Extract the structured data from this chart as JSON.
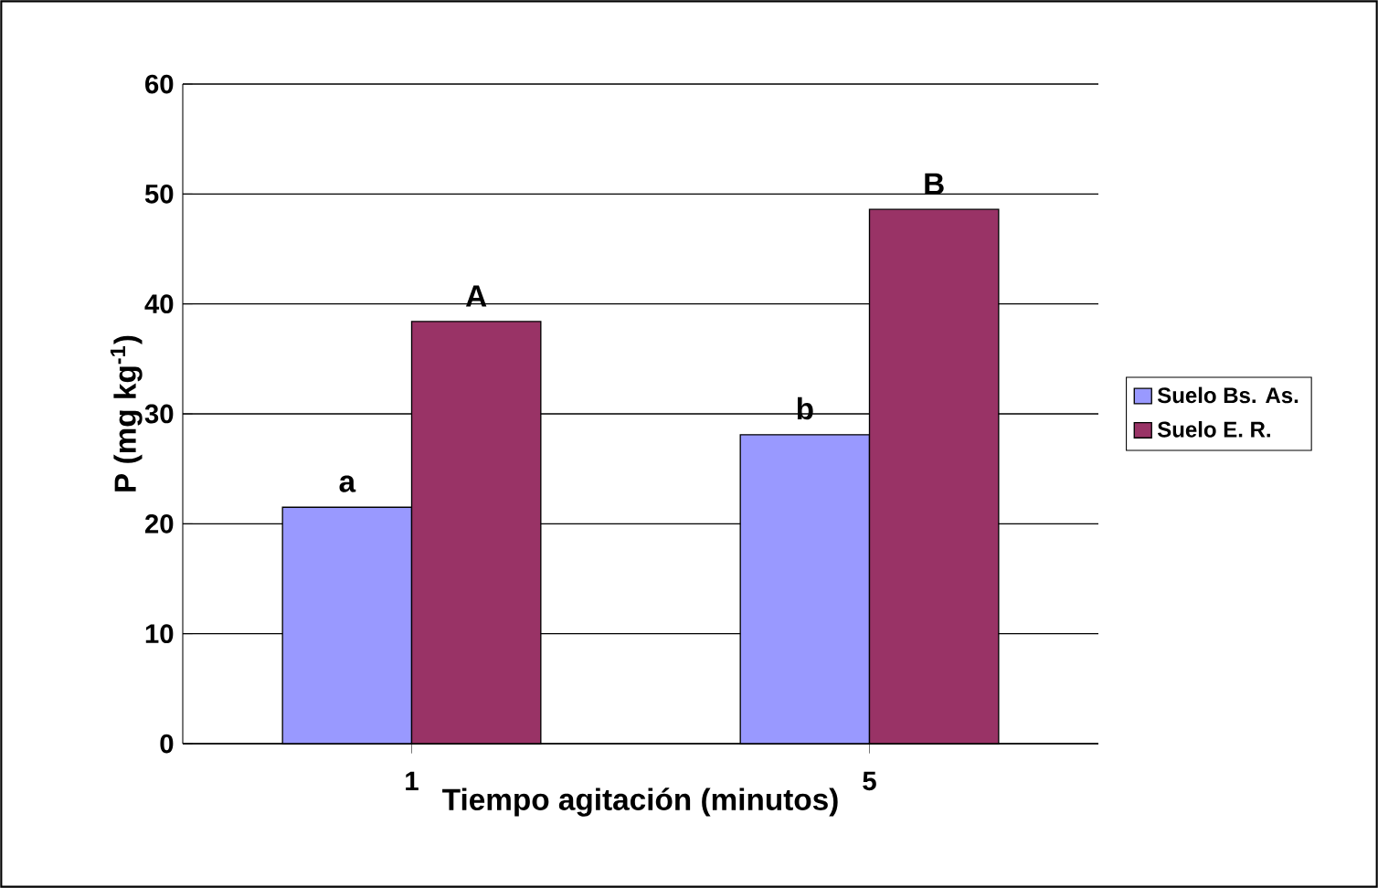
{
  "chart_data": {
    "type": "bar",
    "xlabel": "Tiempo agitación (minutos)",
    "ylabel": "P (mg kg$^{-1}$)",
    "categories": [
      "1",
      "5"
    ],
    "series": [
      {
        "name": "Suelo Bs. As.",
        "color": "#9999ff",
        "values": [
          21.5,
          28.1
        ]
      },
      {
        "name": "Suelo E. R.",
        "color": "#993366",
        "values": [
          38.4,
          48.6
        ]
      }
    ],
    "ylim": [
      0,
      60
    ],
    "yticks": [
      0,
      10,
      20,
      30,
      40,
      50,
      60
    ],
    "grid": "y",
    "legend": "right",
    "annotations": [
      {
        "text": "a",
        "x": "1",
        "y": 21.5
      },
      {
        "text": "A",
        "x": "1",
        "y": 38.4
      },
      {
        "text": "b",
        "x": "5",
        "y": 28.1
      },
      {
        "text": "B",
        "x": "5",
        "y": 48.6
      }
    ]
  }
}
